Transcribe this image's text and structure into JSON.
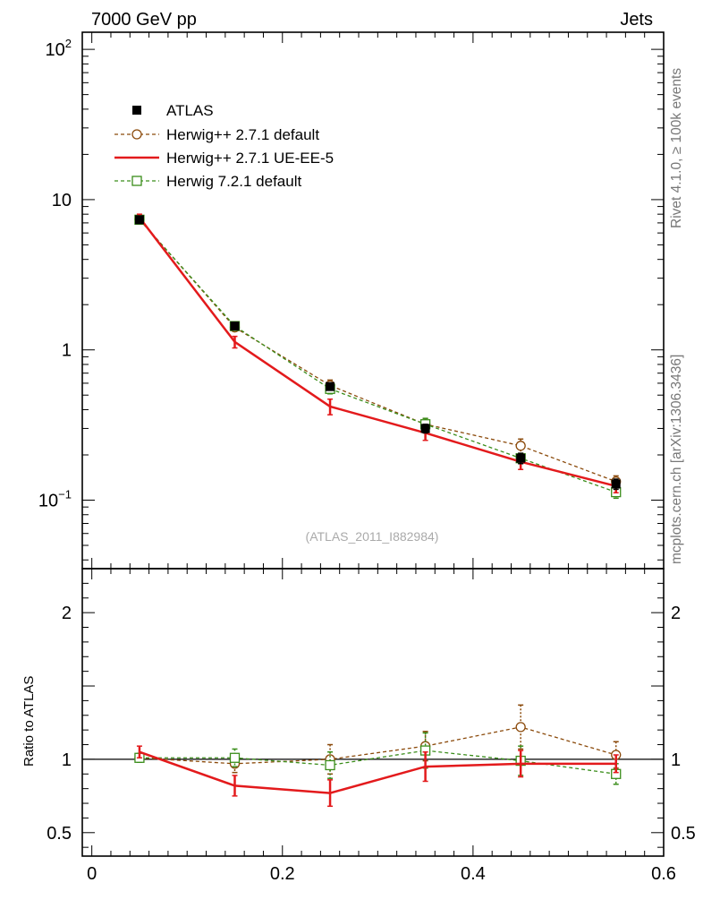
{
  "header": {
    "left": "7000 GeV pp",
    "right": "Jets"
  },
  "side_text": {
    "rivet": "Rivet 4.1.0, ≥ 100k events",
    "mcplots": "mcplots.cern.ch [arXiv:1306.3436]"
  },
  "watermark": "(ATLAS_2011_I882984)",
  "chart_data": {
    "type": "line",
    "x_axis": {
      "range": [
        -0.01,
        0.6
      ],
      "ticks": [
        0,
        0.2,
        0.4,
        0.6
      ],
      "tick_labels": [
        "0",
        "0.2",
        "0.4",
        "0.6"
      ]
    },
    "main_panel": {
      "yscale": "log",
      "ylim": [
        0.035,
        130
      ],
      "y_ticks": [
        0.1,
        1,
        10,
        100
      ],
      "y_tick_labels": {
        "0.1": {
          "base": "10",
          "exp": "−1"
        },
        "1": {
          "base": "1",
          "exp": ""
        },
        "10": {
          "base": "10",
          "exp": ""
        },
        "100": {
          "base": "10",
          "exp": "2"
        }
      }
    },
    "ratio_panel": {
      "ylabel": "Ratio to ATLAS",
      "ylim": [
        0.34,
        2.3
      ],
      "y_ticks": [
        0.5,
        1,
        2
      ],
      "y_tick_labels": [
        "0.5",
        "1",
        "2"
      ],
      "reference_line": 1
    },
    "x": [
      0.05,
      0.15,
      0.25,
      0.35,
      0.45,
      0.55
    ],
    "series": [
      {
        "name": "ATLAS",
        "style": "data",
        "color": "#000000",
        "values": [
          7.35,
          1.44,
          0.57,
          0.3,
          0.19,
          0.128
        ],
        "errors": [
          0.25,
          0.06,
          0.03,
          0.02,
          0.015,
          0.01
        ],
        "ratio": [
          1.0,
          1.0,
          1.0,
          1.0,
          1.0,
          1.0
        ],
        "ratio_errors": [
          0,
          0,
          0,
          0,
          0,
          0
        ]
      },
      {
        "name": "Herwig++ 2.7.1 default",
        "style": "dashed-circle",
        "color": "#8b4a0b",
        "values": [
          7.4,
          1.41,
          0.58,
          0.32,
          0.23,
          0.133
        ],
        "errors": [
          0.3,
          0.05,
          0.05,
          0.03,
          0.025,
          0.012
        ],
        "ratio": [
          1.01,
          0.97,
          1.0,
          1.09,
          1.22,
          1.03
        ],
        "ratio_errors": [
          0.03,
          0.06,
          0.1,
          0.1,
          0.15,
          0.09
        ]
      },
      {
        "name": "Herwig++ 2.7.1 UE-EE-5",
        "style": "solid",
        "color": "#e31a1c",
        "values": [
          7.6,
          1.13,
          0.42,
          0.28,
          0.18,
          0.124
        ],
        "errors": [
          0.4,
          0.1,
          0.05,
          0.03,
          0.02,
          0.012
        ],
        "ratio": [
          1.05,
          0.82,
          0.77,
          0.95,
          0.97,
          0.97
        ],
        "ratio_errors": [
          0.04,
          0.07,
          0.09,
          0.1,
          0.09,
          0.06
        ]
      },
      {
        "name": "Herwig 7.2.1 default",
        "style": "dashed-square",
        "color": "#3a8d1a",
        "values": [
          7.35,
          1.44,
          0.55,
          0.32,
          0.19,
          0.113
        ],
        "errors": [
          0.25,
          0.05,
          0.04,
          0.03,
          0.015,
          0.01
        ],
        "ratio": [
          1.01,
          1.01,
          0.96,
          1.06,
          0.99,
          0.9
        ],
        "ratio_errors": [
          0.03,
          0.06,
          0.09,
          0.12,
          0.1,
          0.07
        ]
      }
    ]
  }
}
